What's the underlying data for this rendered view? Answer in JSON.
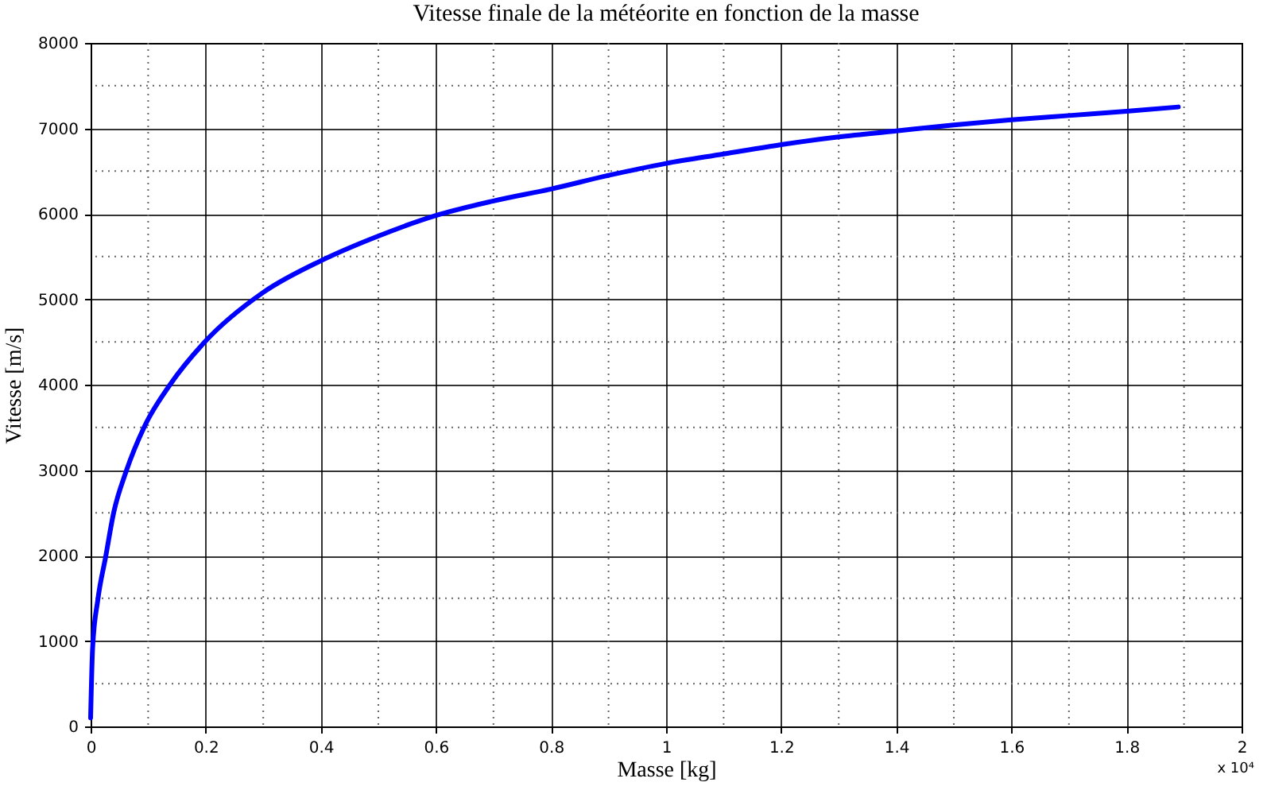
{
  "chart_data": {
    "type": "line",
    "title": "Vitesse finale de la météorite en fonction de la masse",
    "xlabel": "Masse [kg]",
    "ylabel": "Vitesse [m/s]",
    "x": [
      0,
      0.0035,
      0.0127,
      0.026,
      0.04,
      0.062,
      0.0935,
      0.138,
      0.197,
      0.3,
      0.4,
      0.5,
      0.6,
      0.7,
      0.8,
      0.9,
      1.0,
      1.1,
      1.2,
      1.3,
      1.4,
      1.5,
      1.6,
      1.7,
      1.8,
      1.89
    ],
    "series": [
      {
        "color": "#0000ff",
        "values": [
          100,
          920,
          1490,
          1980,
          2500,
          2990,
          3510,
          4000,
          4490,
          5080,
          5450,
          5740,
          5980,
          6150,
          6290,
          6450,
          6590,
          6700,
          6810,
          6900,
          6970,
          7040,
          7100,
          7150,
          7200,
          7250
        ]
      }
    ],
    "xlim": [
      0,
      2
    ],
    "xticks": [
      0,
      0.2,
      0.4,
      0.6,
      0.8,
      1,
      1.2,
      1.4,
      1.6,
      1.8,
      2
    ],
    "ylim": [
      0,
      8000
    ],
    "yticks": [
      0,
      1000,
      2000,
      3000,
      4000,
      5000,
      6000,
      7000,
      8000
    ],
    "grid": true,
    "annotations": [
      "x 10⁴"
    ]
  }
}
